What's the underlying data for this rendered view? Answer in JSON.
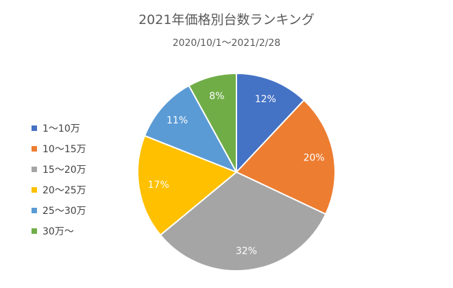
{
  "chart_data": {
    "type": "pie",
    "title": "2021年価格別台数ランキング",
    "subtitle": "2020/10/1～2021/2/28",
    "categories": [
      "1～10万",
      "10～15万",
      "15～20万",
      "20～25万",
      "25～30万",
      "30万～"
    ],
    "values": [
      12,
      20,
      32,
      17,
      11,
      8
    ],
    "labels": [
      "12%",
      "20%",
      "32%",
      "17%",
      "11%",
      "8%"
    ],
    "colors": [
      "#4472c4",
      "#ed7d31",
      "#a5a5a5",
      "#ffc000",
      "#5b9bd5",
      "#70ad47"
    ],
    "start_angle": "12 o'clock",
    "direction": "clockwise",
    "legend": "left"
  }
}
